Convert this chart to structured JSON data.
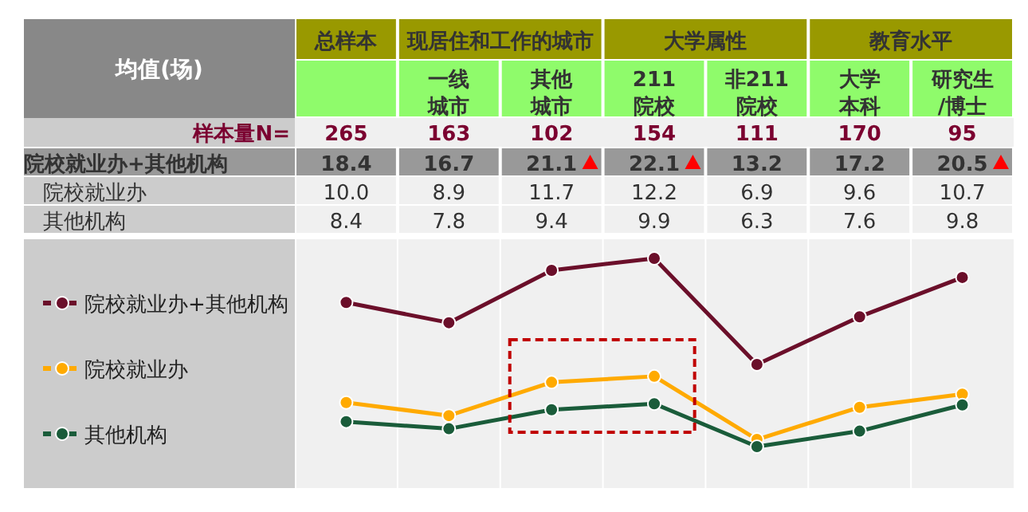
{
  "chart_data": {
    "type": "line",
    "title": "均值(场)",
    "categories": [
      null,
      "一线城市",
      "其他城市",
      "211院校",
      "非211院校",
      "大学本科",
      "研究生/博士"
    ],
    "annotations": [
      "总样本",
      "现居住和工作的城市",
      "大学属性",
      "教育水平",
      "样本量N=",
      "265",
      "163",
      "102",
      "154",
      "111",
      "170",
      "95"
    ],
    "series": [
      {
        "name": "院校就业办+其他机构",
        "color": "#6b0f2a",
        "values": [
          18.4,
          16.7,
          21.1,
          22.1,
          13.2,
          17.2,
          20.5
        ],
        "value_labels": [
          "18.4",
          "16.7",
          "21.1",
          "22.1",
          "13.2",
          "17.2",
          "20.5"
        ]
      },
      {
        "name": "院校就业办",
        "color": "#ffaa00",
        "values": [
          10.0,
          8.9,
          11.7,
          12.2,
          6.9,
          9.6,
          10.7
        ],
        "value_labels": [
          "10.0",
          "8.9",
          "11.7",
          "12.2",
          "6.9",
          "9.6",
          "10.7"
        ]
      },
      {
        "name": "其他机构",
        "color": "#1a5c3a",
        "values": [
          8.4,
          7.8,
          9.4,
          9.9,
          6.3,
          7.6,
          9.8
        ],
        "value_labels": [
          "8.4",
          "7.8",
          "9.4",
          "9.9",
          "6.3",
          "7.6",
          "9.8"
        ]
      }
    ],
    "legend": "left",
    "marker": "circle",
    "line_style": "solid"
  }
}
